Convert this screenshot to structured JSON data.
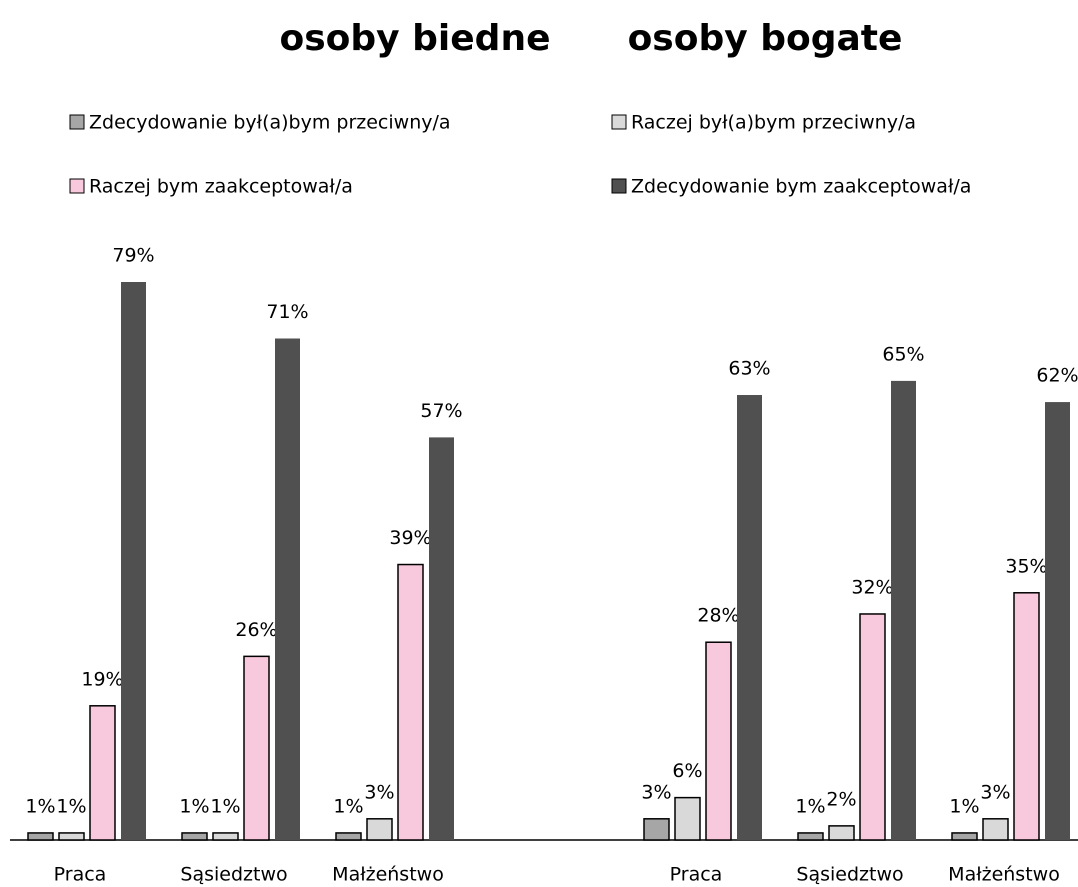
{
  "chart_data": {
    "type": "bar",
    "titles": [
      "osoby biedne",
      "osoby bogate"
    ],
    "categories": [
      "Praca",
      "Sąsiedztwo",
      "Małżeństwo",
      "Praca",
      "Sąsiedztwo",
      "Małżeństwo"
    ],
    "legend": "top",
    "series": [
      {
        "name": "Zdecydowanie był(a)bym przeciwny/a",
        "color": "#a6a6a6",
        "values": [
          1,
          1,
          1,
          3,
          1,
          1
        ],
        "value_labels": [
          "1%",
          "1%",
          "1%",
          "3%",
          "1%",
          "1%"
        ]
      },
      {
        "name": "Raczej był(a)bym przeciwny/a",
        "color": "#d9d9d9",
        "values": [
          1,
          1,
          3,
          6,
          2,
          3
        ],
        "value_labels": [
          "1%",
          "1%",
          "3%",
          "6%",
          "2%",
          "3%"
        ]
      },
      {
        "name": "Raczej bym zaakceptował/a",
        "color": "#f8c8dc",
        "values": [
          19,
          26,
          39,
          28,
          32,
          35
        ],
        "value_labels": [
          "19%",
          "26%",
          "39%",
          "28%",
          "32%",
          "35%"
        ]
      },
      {
        "name": "Zdecydowanie bym zaakceptował/a",
        "color": "#505050",
        "values": [
          79,
          71,
          57,
          63,
          65,
          62
        ],
        "value_labels": [
          "79%",
          "71%",
          "57%",
          "63%",
          "65%",
          "62%"
        ]
      }
    ]
  }
}
